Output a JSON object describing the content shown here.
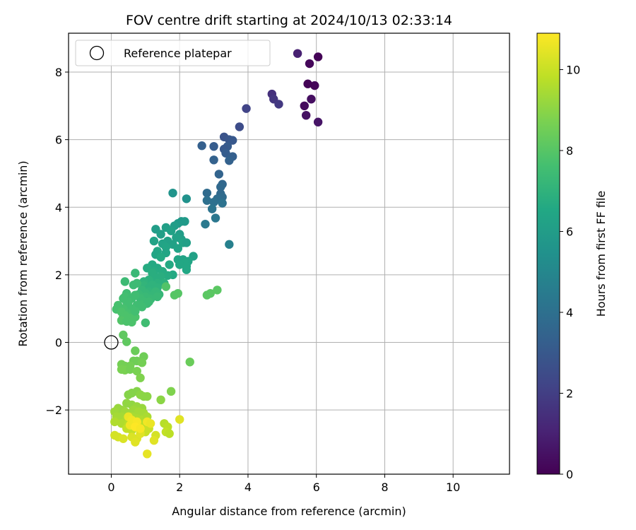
{
  "chart_data": {
    "type": "scatter",
    "title": "FOV centre drift starting at 2024/10/13 02:33:14",
    "xlabel": "Angular distance from reference (arcmin)",
    "ylabel": "Rotation from reference (arcmin)",
    "xlim": [
      -1.25,
      11.65
    ],
    "ylim": [
      -3.9,
      9.15
    ],
    "xticks": [
      0,
      2,
      4,
      6,
      8,
      10
    ],
    "yticks": [
      -2,
      0,
      2,
      4,
      6,
      8
    ],
    "xtick_labels": [
      "0",
      "2",
      "4",
      "6",
      "8",
      "10"
    ],
    "ytick_labels": [
      "−2",
      "0",
      "2",
      "4",
      "6",
      "8"
    ],
    "grid": true,
    "colormap": "viridis",
    "colorbar": {
      "label": "Hours from first FF file",
      "range": [
        0,
        10.9
      ],
      "ticks": [
        0,
        2,
        4,
        6,
        8,
        10
      ],
      "tick_labels": [
        "0",
        "2",
        "4",
        "6",
        "8",
        "10"
      ]
    },
    "legend": {
      "position": "top-left",
      "entries": [
        {
          "label": "Reference platepar",
          "marker": "open-circle"
        }
      ]
    },
    "reference_point": {
      "x": 0,
      "y": 0
    },
    "series": [
      {
        "points": [
          [
            6.05,
            8.45,
            0.05
          ],
          [
            5.8,
            8.25,
            0.2
          ],
          [
            5.65,
            7.0,
            0.3
          ],
          [
            5.85,
            7.2,
            0.4
          ],
          [
            5.95,
            7.6,
            0.15
          ],
          [
            5.75,
            7.65,
            0.1
          ],
          [
            5.7,
            6.72,
            0.5
          ],
          [
            6.05,
            6.52,
            0.6
          ],
          [
            5.45,
            8.55,
            1.0
          ],
          [
            4.7,
            7.35,
            1.5
          ],
          [
            4.75,
            7.2,
            1.7
          ],
          [
            4.9,
            7.05,
            1.8
          ],
          [
            3.95,
            6.92,
            2.2
          ],
          [
            3.75,
            6.38,
            2.5
          ],
          [
            3.3,
            6.08,
            2.8
          ],
          [
            3.45,
            6.0,
            2.9
          ],
          [
            3.55,
            5.98,
            3.0
          ],
          [
            3.4,
            5.8,
            3.1
          ],
          [
            3.0,
            5.8,
            3.2
          ],
          [
            2.65,
            5.82,
            3.3
          ],
          [
            3.3,
            5.72,
            3.0
          ],
          [
            3.35,
            5.6,
            3.2
          ],
          [
            3.55,
            5.5,
            3.3
          ],
          [
            3.45,
            5.38,
            3.4
          ],
          [
            3.0,
            5.4,
            3.4
          ],
          [
            3.15,
            4.98,
            3.5
          ],
          [
            3.25,
            4.68,
            3.6
          ],
          [
            3.2,
            4.6,
            3.7
          ],
          [
            2.8,
            4.42,
            3.8
          ],
          [
            3.2,
            4.4,
            3.7
          ],
          [
            3.25,
            4.3,
            3.8
          ],
          [
            3.1,
            4.25,
            3.9
          ],
          [
            2.8,
            4.2,
            4.0
          ],
          [
            3.0,
            4.15,
            4.0
          ],
          [
            3.25,
            4.12,
            4.1
          ],
          [
            2.95,
            3.95,
            4.2
          ],
          [
            3.05,
            3.68,
            4.3
          ],
          [
            2.75,
            3.5,
            4.4
          ],
          [
            3.45,
            2.9,
            4.7
          ],
          [
            2.2,
            4.25,
            5.5
          ],
          [
            1.8,
            4.42,
            5.6
          ],
          [
            2.05,
            3.58,
            5.8
          ],
          [
            2.15,
            3.58,
            5.9
          ],
          [
            1.95,
            3.52,
            5.9
          ],
          [
            1.85,
            3.45,
            6.0
          ],
          [
            1.6,
            3.4,
            6.1
          ],
          [
            1.3,
            3.35,
            6.0
          ],
          [
            1.75,
            3.3,
            6.2
          ],
          [
            1.45,
            3.2,
            6.1
          ],
          [
            2.0,
            3.2,
            6.0
          ],
          [
            2.05,
            3.05,
            6.1
          ],
          [
            1.9,
            3.1,
            6.2
          ],
          [
            1.65,
            3.0,
            6.2
          ],
          [
            1.25,
            3.0,
            6.3
          ],
          [
            1.5,
            2.92,
            6.3
          ],
          [
            1.8,
            2.9,
            6.2
          ],
          [
            2.1,
            2.95,
            6.3
          ],
          [
            2.2,
            2.95,
            6.1
          ],
          [
            1.6,
            2.82,
            6.4
          ],
          [
            1.95,
            2.78,
            6.3
          ],
          [
            1.35,
            2.7,
            6.5
          ],
          [
            1.3,
            2.6,
            6.4
          ],
          [
            1.6,
            2.65,
            6.4
          ],
          [
            1.45,
            2.52,
            6.6
          ],
          [
            2.4,
            2.55,
            6.2
          ],
          [
            1.95,
            2.45,
            6.4
          ],
          [
            2.1,
            2.45,
            6.3
          ],
          [
            2.25,
            2.4,
            6.4
          ],
          [
            2.15,
            2.35,
            6.5
          ],
          [
            2.0,
            2.3,
            6.5
          ],
          [
            1.7,
            2.3,
            6.6
          ],
          [
            1.2,
            2.3,
            6.6
          ],
          [
            2.2,
            2.25,
            6.5
          ],
          [
            1.35,
            2.2,
            6.6
          ],
          [
            2.2,
            2.15,
            6.5
          ],
          [
            1.05,
            2.2,
            6.7
          ],
          [
            1.5,
            2.1,
            6.7
          ],
          [
            1.25,
            2.1,
            6.7
          ],
          [
            1.2,
            2.05,
            6.8
          ],
          [
            1.8,
            2.0,
            6.6
          ],
          [
            1.65,
            1.98,
            6.7
          ],
          [
            1.45,
            1.95,
            6.8
          ],
          [
            1.3,
            1.9,
            6.8
          ],
          [
            1.1,
            1.85,
            6.9
          ],
          [
            0.95,
            1.8,
            7.0
          ],
          [
            1.35,
            1.75,
            6.9
          ],
          [
            1.55,
            1.75,
            6.9
          ],
          [
            1.2,
            1.7,
            7.0
          ],
          [
            0.95,
            1.68,
            7.1
          ],
          [
            1.1,
            1.6,
            7.0
          ],
          [
            1.35,
            1.62,
            7.0
          ],
          [
            0.9,
            1.55,
            7.2
          ],
          [
            1.1,
            1.5,
            7.1
          ],
          [
            1.3,
            1.5,
            7.2
          ],
          [
            1.0,
            1.45,
            7.2
          ],
          [
            1.4,
            1.42,
            7.2
          ],
          [
            0.8,
            1.42,
            7.3
          ],
          [
            1.15,
            1.38,
            7.2
          ],
          [
            1.35,
            1.35,
            7.3
          ],
          [
            1.0,
            1.35,
            7.3
          ],
          [
            0.85,
            1.3,
            7.4
          ],
          [
            1.15,
            1.28,
            7.3
          ],
          [
            0.95,
            1.2,
            7.4
          ],
          [
            1.1,
            1.2,
            7.4
          ],
          [
            0.9,
            1.12,
            7.5
          ],
          [
            1.05,
            1.15,
            7.4
          ],
          [
            0.75,
            1.1,
            7.5
          ],
          [
            0.9,
            1.05,
            7.5
          ],
          [
            0.6,
            1.0,
            7.6
          ],
          [
            0.5,
            1.05,
            7.6
          ],
          [
            0.45,
            1.2,
            7.6
          ],
          [
            0.4,
            0.95,
            7.6
          ],
          [
            0.35,
            1.0,
            7.7
          ],
          [
            0.2,
            1.1,
            7.7
          ],
          [
            0.15,
            0.98,
            7.7
          ],
          [
            0.3,
            0.9,
            7.8
          ],
          [
            0.5,
            0.85,
            7.7
          ],
          [
            0.6,
            0.82,
            7.7
          ],
          [
            0.4,
            0.8,
            7.8
          ],
          [
            0.35,
            0.75,
            7.8
          ],
          [
            0.55,
            0.72,
            7.8
          ],
          [
            0.3,
            0.65,
            7.9
          ],
          [
            0.45,
            0.62,
            7.8
          ],
          [
            0.6,
            0.6,
            7.8
          ],
          [
            0.7,
            0.75,
            7.8
          ],
          [
            0.65,
            1.7,
            7.4
          ],
          [
            0.75,
            1.75,
            7.4
          ],
          [
            0.7,
            2.05,
            7.3
          ],
          [
            0.4,
            1.8,
            7.4
          ],
          [
            0.45,
            1.45,
            7.5
          ],
          [
            0.4,
            1.35,
            7.6
          ],
          [
            0.7,
            1.4,
            7.5
          ],
          [
            0.6,
            1.3,
            7.5
          ],
          [
            0.5,
            1.2,
            7.6
          ],
          [
            0.35,
            1.3,
            7.6
          ],
          [
            0.7,
            0.92,
            7.6
          ],
          [
            1.0,
            0.58,
            7.5
          ],
          [
            1.6,
            1.65,
            7.9
          ],
          [
            1.85,
            1.4,
            8.0
          ],
          [
            1.95,
            1.45,
            8.0
          ],
          [
            2.8,
            1.4,
            8.1
          ],
          [
            2.9,
            1.45,
            8.1
          ],
          [
            3.1,
            1.55,
            8.1
          ],
          [
            0.35,
            0.22,
            8.2
          ],
          [
            0.45,
            0.02,
            8.2
          ],
          [
            0.7,
            -0.25,
            8.4
          ],
          [
            0.95,
            -0.42,
            8.5
          ],
          [
            0.3,
            -0.65,
            8.6
          ],
          [
            0.4,
            -0.7,
            8.6
          ],
          [
            0.65,
            -0.55,
            8.5
          ],
          [
            0.75,
            -0.55,
            8.5
          ],
          [
            0.9,
            -0.6,
            8.6
          ],
          [
            0.55,
            -0.7,
            8.6
          ],
          [
            0.3,
            -0.8,
            8.7
          ],
          [
            0.4,
            -0.82,
            8.7
          ],
          [
            0.55,
            -0.8,
            8.6
          ],
          [
            0.75,
            -0.85,
            8.7
          ],
          [
            0.85,
            -1.05,
            8.8
          ],
          [
            2.3,
            -0.58,
            8.4
          ],
          [
            0.5,
            -1.55,
            8.9
          ],
          [
            0.6,
            -1.5,
            8.9
          ],
          [
            0.75,
            -1.45,
            8.9
          ],
          [
            0.85,
            -1.55,
            9.0
          ],
          [
            0.95,
            -1.6,
            9.0
          ],
          [
            1.05,
            -1.6,
            9.0
          ],
          [
            1.75,
            -1.45,
            8.8
          ],
          [
            1.45,
            -1.7,
            9.0
          ],
          [
            0.45,
            -1.8,
            9.1
          ],
          [
            0.6,
            -1.85,
            9.1
          ],
          [
            0.75,
            -1.9,
            9.2
          ],
          [
            0.9,
            -1.95,
            9.2
          ],
          [
            0.2,
            -1.95,
            9.2
          ],
          [
            0.3,
            -2.0,
            9.2
          ],
          [
            0.1,
            -2.05,
            9.3
          ],
          [
            0.4,
            -2.05,
            9.3
          ],
          [
            0.5,
            -2.1,
            9.3
          ],
          [
            0.65,
            -2.0,
            9.3
          ],
          [
            0.8,
            -2.05,
            9.4
          ],
          [
            0.95,
            -2.1,
            9.4
          ],
          [
            0.15,
            -2.2,
            9.4
          ],
          [
            0.3,
            -2.2,
            9.4
          ],
          [
            0.45,
            -2.25,
            9.5
          ],
          [
            0.6,
            -2.2,
            9.5
          ],
          [
            0.75,
            -2.25,
            9.5
          ],
          [
            0.9,
            -2.3,
            9.6
          ],
          [
            1.05,
            -2.2,
            9.5
          ],
          [
            0.1,
            -2.35,
            9.6
          ],
          [
            0.3,
            -2.4,
            9.6
          ],
          [
            0.5,
            -2.4,
            9.7
          ],
          [
            0.65,
            -2.45,
            9.7
          ],
          [
            0.8,
            -2.45,
            9.8
          ],
          [
            0.95,
            -2.5,
            9.8
          ],
          [
            1.1,
            -2.45,
            9.8
          ],
          [
            0.45,
            -2.55,
            9.9
          ],
          [
            0.6,
            -2.6,
            9.9
          ],
          [
            0.85,
            -2.6,
            10.0
          ],
          [
            1.0,
            -2.65,
            10.0
          ],
          [
            1.1,
            -2.55,
            10.0
          ],
          [
            1.55,
            -2.4,
            9.7
          ],
          [
            1.65,
            -2.5,
            9.8
          ],
          [
            1.6,
            -2.65,
            9.9
          ],
          [
            1.7,
            -2.7,
            9.8
          ],
          [
            0.1,
            -2.75,
            10.2
          ],
          [
            0.2,
            -2.8,
            10.2
          ],
          [
            0.35,
            -2.85,
            10.3
          ],
          [
            0.6,
            -2.8,
            10.3
          ],
          [
            0.75,
            -2.85,
            10.3
          ],
          [
            0.7,
            -2.95,
            10.4
          ],
          [
            0.85,
            -2.7,
            10.4
          ],
          [
            1.3,
            -2.75,
            10.2
          ],
          [
            1.25,
            -2.9,
            10.4
          ],
          [
            1.05,
            -3.3,
            10.5
          ],
          [
            2.0,
            -2.28,
            10.4
          ],
          [
            0.5,
            -2.2,
            10.6
          ],
          [
            0.6,
            -2.3,
            10.7
          ],
          [
            0.75,
            -2.35,
            10.8
          ],
          [
            0.55,
            -2.45,
            10.7
          ],
          [
            0.7,
            -2.5,
            10.9
          ],
          [
            0.85,
            -2.55,
            10.8
          ],
          [
            1.05,
            -2.35,
            10.7
          ],
          [
            1.15,
            -2.4,
            10.6
          ]
        ]
      }
    ]
  }
}
